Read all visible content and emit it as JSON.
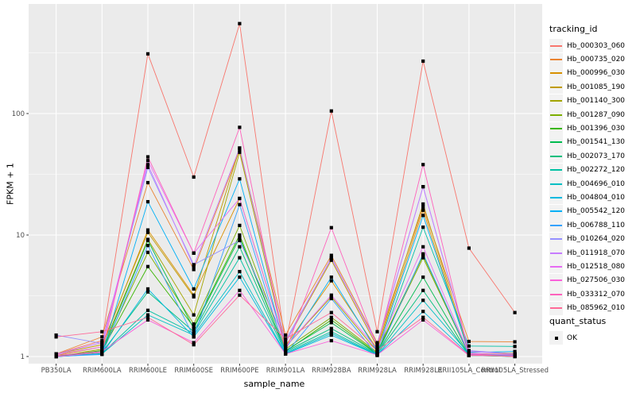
{
  "figure": {
    "x_axis_title": "sample_name",
    "y_axis_title": "FPKM + 1",
    "legend_tracking": {
      "title": "tracking_id"
    },
    "legend_quant": {
      "title": "quant_status",
      "items": [
        {
          "label": "OK",
          "marker": "black-square"
        }
      ]
    }
  },
  "chart_data": {
    "type": "line",
    "title": "",
    "xlabel": "sample_name",
    "ylabel": "FPKM + 1",
    "y_scale": "log10",
    "ylim": [
      1,
      800
    ],
    "y_major_ticks": [
      1,
      10,
      100
    ],
    "y_minor_gridlines": [
      3.1623,
      31.623,
      316.23
    ],
    "grid": "white major and minor on grey panel",
    "panel_bg": "#EBEBEB",
    "legend_position": "right",
    "point_marker": {
      "shape": "square",
      "color": "#000000",
      "meaning": "quant_status OK"
    },
    "categories": [
      "PB350LA",
      "RRIM600LA",
      "RRIM600LE",
      "RRIM600SE",
      "RRIM600PE",
      "RRIM901LA",
      "RRIM928BA",
      "RRIM928LA",
      "RRIM928LE",
      "RRII105LA_Control",
      "RRII105LA_Stressed"
    ],
    "series": [
      {
        "name": "Hb_000303_060",
        "color": "#F8766D",
        "values": [
          1.05,
          1.35,
          310,
          30,
          550,
          1.25,
          105,
          1.6,
          270,
          7.8,
          2.3
        ]
      },
      {
        "name": "Hb_000735_020",
        "color": "#EA8331",
        "values": [
          1.05,
          1.45,
          27,
          5.2,
          50,
          1.5,
          6.8,
          1.3,
          17,
          1.33,
          1.32
        ]
      },
      {
        "name": "Hb_000996_030",
        "color": "#D89000",
        "values": [
          1.02,
          1.2,
          11,
          3.2,
          20,
          1.22,
          4.2,
          1.15,
          16,
          1.06,
          1.04
        ]
      },
      {
        "name": "Hb_001085_190",
        "color": "#C09B00",
        "values": [
          1.05,
          1.25,
          10.5,
          3.1,
          52,
          1.3,
          6.2,
          1.2,
          18,
          1.1,
          1.06
        ]
      },
      {
        "name": "Hb_001140_300",
        "color": "#A3A500",
        "values": [
          1.0,
          1.15,
          9.2,
          2.2,
          48,
          1.2,
          3.1,
          1.1,
          6.8,
          1.05,
          1.02
        ]
      },
      {
        "name": "Hb_001287_090",
        "color": "#7CAE00",
        "values": [
          1.02,
          1.1,
          7.2,
          1.85,
          12,
          1.15,
          2.1,
          1.08,
          6.5,
          1.03,
          1.02
        ]
      },
      {
        "name": "Hb_001396_030",
        "color": "#39B600",
        "values": [
          1.0,
          1.12,
          5.5,
          1.75,
          10,
          1.1,
          2.0,
          1.06,
          6.9,
          1.02,
          1.01
        ]
      },
      {
        "name": "Hb_001541_130",
        "color": "#00BB4E",
        "values": [
          1.0,
          1.1,
          9.0,
          1.7,
          9.5,
          1.12,
          1.9,
          1.05,
          4.5,
          1.02,
          1.0
        ]
      },
      {
        "name": "Hb_002073_170",
        "color": "#00BF7D",
        "values": [
          1.0,
          1.08,
          3.4,
          1.6,
          8.0,
          1.1,
          1.7,
          1.05,
          3.5,
          1.02,
          1.0
        ]
      },
      {
        "name": "Hb_002272_120",
        "color": "#00C1A3",
        "values": [
          1.0,
          1.06,
          2.4,
          1.55,
          6.5,
          1.08,
          1.6,
          1.04,
          11.6,
          1.22,
          1.21
        ]
      },
      {
        "name": "Hb_004696_010",
        "color": "#00BFC4",
        "values": [
          1.0,
          1.05,
          2.2,
          1.5,
          5.0,
          1.06,
          1.55,
          1.03,
          2.9,
          1.05,
          1.03
        ]
      },
      {
        "name": "Hb_004804_010",
        "color": "#00BAE0",
        "values": [
          1.0,
          1.05,
          3.6,
          1.45,
          4.5,
          1.05,
          1.5,
          1.03,
          2.35,
          1.04,
          1.02
        ]
      },
      {
        "name": "Hb_005542_120",
        "color": "#00B0F6",
        "values": [
          1.0,
          1.05,
          18.8,
          3.6,
          29,
          1.15,
          4.5,
          1.1,
          14.5,
          1.08,
          1.1
        ]
      },
      {
        "name": "Hb_006788_110",
        "color": "#35A2FF",
        "values": [
          1.0,
          1.04,
          8.2,
          1.45,
          17.8,
          1.05,
          3.0,
          1.02,
          7.0,
          1.03,
          1.02
        ]
      },
      {
        "name": "Hb_010264_020",
        "color": "#9590FF",
        "values": [
          1.5,
          1.28,
          36,
          5.7,
          9.0,
          1.35,
          6.4,
          1.27,
          25,
          1.12,
          1.05
        ]
      },
      {
        "name": "Hb_011918_070",
        "color": "#C77CFF",
        "values": [
          1.05,
          1.3,
          38,
          5.5,
          52,
          1.3,
          6.5,
          1.25,
          25,
          1.1,
          1.05
        ]
      },
      {
        "name": "Hb_012518_080",
        "color": "#E76BF3",
        "values": [
          1.04,
          1.2,
          41,
          7.1,
          20,
          1.2,
          3.2,
          1.15,
          8.0,
          1.06,
          1.03
        ]
      },
      {
        "name": "Hb_027506_030",
        "color": "#FA62DB",
        "values": [
          1.02,
          1.1,
          2.0,
          1.3,
          3.5,
          1.05,
          1.35,
          1.03,
          2.0,
          1.02,
          1.01
        ]
      },
      {
        "name": "Hb_033312_070",
        "color": "#FF62BC",
        "values": [
          1.0,
          1.08,
          44,
          7.1,
          77,
          1.1,
          11.5,
          1.2,
          38,
          1.05,
          1.0
        ]
      },
      {
        "name": "Hb_085962_010",
        "color": "#FF6A98",
        "values": [
          1.45,
          1.6,
          2.1,
          1.25,
          3.2,
          1.4,
          2.3,
          1.12,
          2.1,
          1.03,
          1.0
        ]
      }
    ]
  }
}
